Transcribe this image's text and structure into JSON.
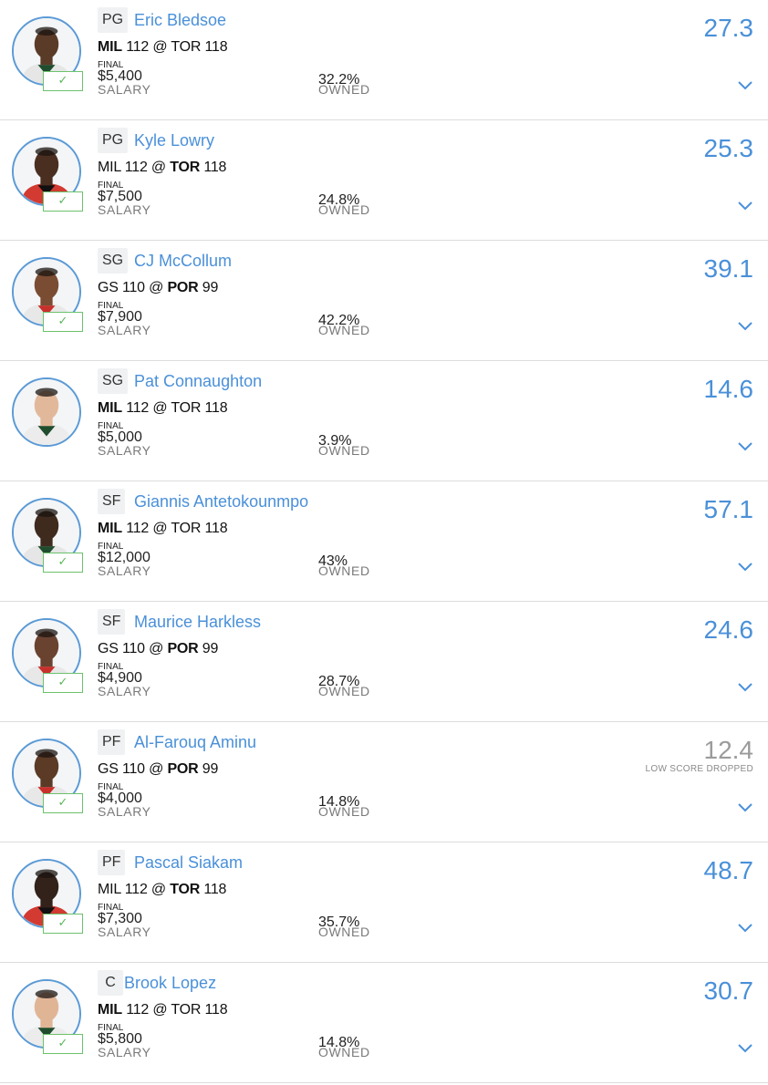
{
  "lineup": [
    {
      "position": "PG",
      "name": "Eric Bledsoe",
      "away_team": "MIL",
      "away_score": "112",
      "home_team": "TOR",
      "home_score": "118",
      "bold_side": "away",
      "status": "FINAL",
      "salary": "$5,400",
      "salary_label": "SALARY",
      "owned": "32.2%",
      "owned_label": "OWNED",
      "points": "27.3",
      "note": "",
      "dropped": false,
      "checked": true,
      "skin": "#5a3b28",
      "jersey": "#e6e6e6",
      "accent": "#1f4d2e"
    },
    {
      "position": "PG",
      "name": "Kyle Lowry",
      "away_team": "MIL",
      "away_score": "112",
      "home_team": "TOR",
      "home_score": "118",
      "bold_side": "home",
      "status": "FINAL",
      "salary": "$7,500",
      "salary_label": "SALARY",
      "owned": "24.8%",
      "owned_label": "OWNED",
      "points": "25.3",
      "note": "",
      "dropped": false,
      "checked": true,
      "skin": "#4a2f20",
      "jersey": "#d23a32",
      "accent": "#111111"
    },
    {
      "position": "SG",
      "name": "CJ McCollum",
      "away_team": "GS",
      "away_score": "110",
      "home_team": "POR",
      "home_score": "99",
      "bold_side": "home",
      "status": "FINAL",
      "salary": "$7,900",
      "salary_label": "SALARY",
      "owned": "42.2%",
      "owned_label": "OWNED",
      "points": "39.1",
      "note": "",
      "dropped": false,
      "checked": true,
      "skin": "#7a4c32",
      "jersey": "#e8e8e8",
      "accent": "#c8302c"
    },
    {
      "position": "SG",
      "name": "Pat Connaughton",
      "away_team": "MIL",
      "away_score": "112",
      "home_team": "TOR",
      "home_score": "118",
      "bold_side": "away",
      "status": "FINAL",
      "salary": "$5,000",
      "salary_label": "SALARY",
      "owned": "3.9%",
      "owned_label": "OWNED",
      "points": "14.6",
      "note": "",
      "dropped": false,
      "checked": false,
      "skin": "#e2b89a",
      "jersey": "#ececec",
      "accent": "#1f4d2e"
    },
    {
      "position": "SF",
      "name": "Giannis Antetokounmpo",
      "away_team": "MIL",
      "away_score": "112",
      "home_team": "TOR",
      "home_score": "118",
      "bold_side": "away",
      "status": "FINAL",
      "salary": "$12,000",
      "salary_label": "SALARY",
      "owned": "43%",
      "owned_label": "OWNED",
      "points": "57.1",
      "note": "",
      "dropped": false,
      "checked": true,
      "skin": "#3f2a1e",
      "jersey": "#e6e6e6",
      "accent": "#1f4d2e"
    },
    {
      "position": "SF",
      "name": "Maurice Harkless",
      "away_team": "GS",
      "away_score": "110",
      "home_team": "POR",
      "home_score": "99",
      "bold_side": "home",
      "status": "FINAL",
      "salary": "$4,900",
      "salary_label": "SALARY",
      "owned": "28.7%",
      "owned_label": "OWNED",
      "points": "24.6",
      "note": "",
      "dropped": false,
      "checked": true,
      "skin": "#6a4230",
      "jersey": "#e8e8e8",
      "accent": "#c8302c"
    },
    {
      "position": "PF",
      "name": "Al-Farouq Aminu",
      "away_team": "GS",
      "away_score": "110",
      "home_team": "POR",
      "home_score": "99",
      "bold_side": "home",
      "status": "FINAL",
      "salary": "$4,000",
      "salary_label": "SALARY",
      "owned": "14.8%",
      "owned_label": "OWNED",
      "points": "12.4",
      "note": "LOW SCORE DROPPED",
      "dropped": true,
      "checked": true,
      "skin": "#5b3a26",
      "jersey": "#e8e8e8",
      "accent": "#c8302c"
    },
    {
      "position": "PF",
      "name": "Pascal Siakam",
      "away_team": "MIL",
      "away_score": "112",
      "home_team": "TOR",
      "home_score": "118",
      "bold_side": "home",
      "status": "FINAL",
      "salary": "$7,300",
      "salary_label": "SALARY",
      "owned": "35.7%",
      "owned_label": "OWNED",
      "points": "48.7",
      "note": "",
      "dropped": false,
      "checked": true,
      "skin": "#33221a",
      "jersey": "#d23a32",
      "accent": "#111111"
    },
    {
      "position": "C",
      "name": "Brook Lopez",
      "away_team": "MIL",
      "away_score": "112",
      "home_team": "TOR",
      "home_score": "118",
      "bold_side": "away",
      "status": "FINAL",
      "salary": "$5,800",
      "salary_label": "SALARY",
      "owned": "14.8%",
      "owned_label": "OWNED",
      "points": "30.7",
      "note": "",
      "dropped": false,
      "checked": true,
      "skin": "#e0b596",
      "jersey": "#ececec",
      "accent": "#1f4d2e"
    }
  ],
  "icons": {
    "check": "check-icon",
    "expand": "chevron-down-icon",
    "headshot": "player-headshot-icon"
  },
  "colors": {
    "accent_blue": "#4a90d9",
    "dropped_gray": "#9b9b9b",
    "check_green": "#5bb75b"
  }
}
